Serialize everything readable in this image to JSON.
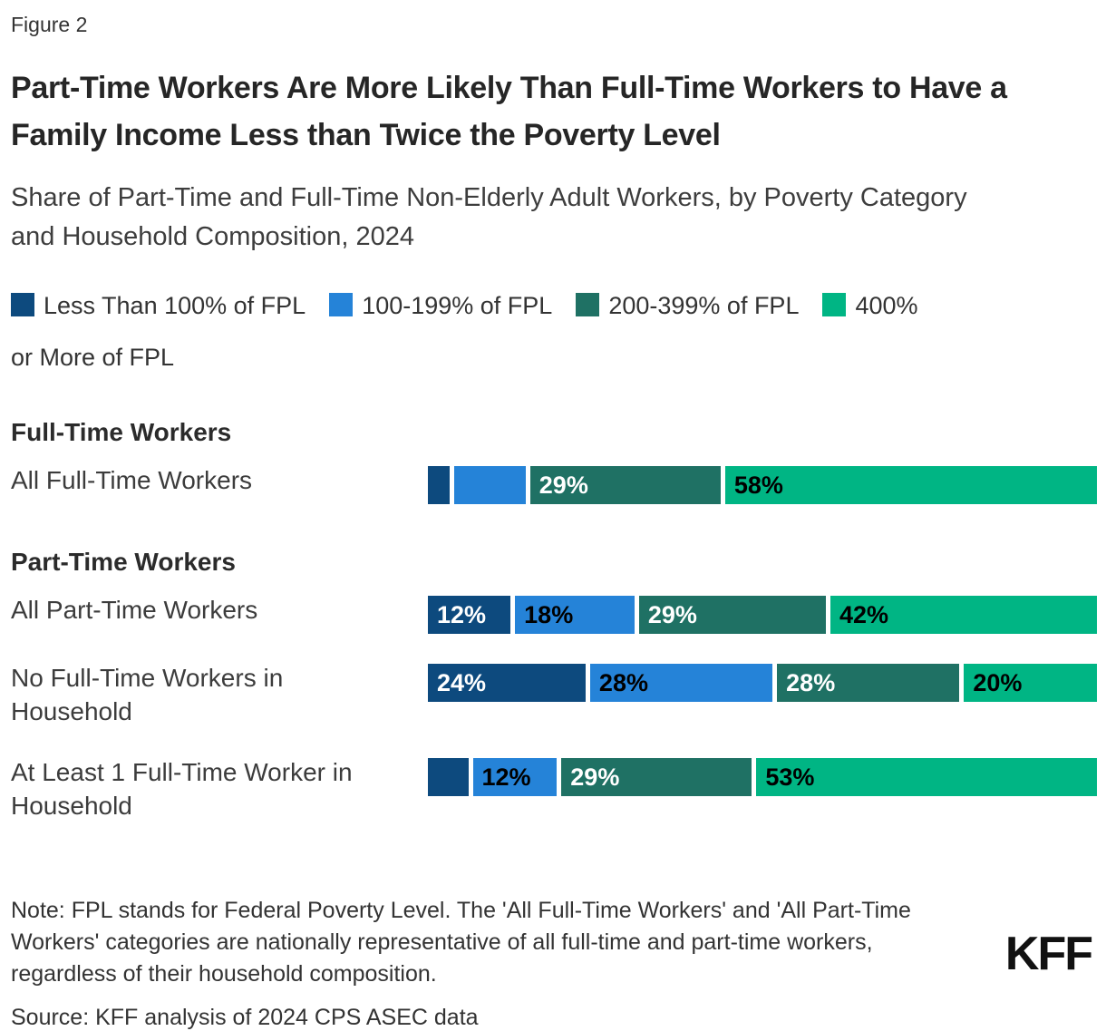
{
  "figure_label": "Figure 2",
  "title": "Part-Time Workers Are More Likely Than Full-Time Workers to Have a Family Income Less than Twice the Poverty Level",
  "subtitle": "Share of Part-Time and Full-Time Non-Elderly Adult Workers, by Poverty Category and Household Composition, 2024",
  "note": "Note: FPL stands for Federal Poverty Level. The 'All Full-Time Workers' and 'All Part-Time Workers' categories are nationally representative of all full-time and part-time workers, regardless of their household composition.",
  "source": "Source: KFF analysis of 2024 CPS ASEC data",
  "logo_text": "KFF",
  "colors": {
    "background": "#FFFFFF",
    "fpl_lt_100": "#0D4A7E",
    "fpl_100_199": "#2583D8",
    "fpl_200_399": "#1F7164",
    "fpl_400_plus": "#00B584",
    "title_text": "#262626",
    "body_text": "#333333"
  },
  "chart_data": {
    "type": "bar",
    "orientation": "horizontal-stacked",
    "value_unit": "%",
    "xlim": [
      0,
      100
    ],
    "legend_position": "top",
    "grid": false,
    "legend": [
      {
        "label": "Less Than 100% of FPL",
        "color": "#0D4A7E",
        "label_text_color": "#FFFFFF"
      },
      {
        "label": "100-199% of FPL",
        "color": "#2583D8",
        "label_text_color": "#000000"
      },
      {
        "label": "200-399% of FPL",
        "color": "#1F7164",
        "label_text_color": "#FFFFFF"
      },
      {
        "label": "400% or More of FPL",
        "color": "#00B584",
        "label_text_color": "#000000"
      }
    ],
    "sections": [
      {
        "heading": "Full-Time Workers",
        "rows": [
          {
            "category": "All Full-Time Workers",
            "values": [
              2,
              10,
              29,
              58
            ],
            "labels": [
              "",
              "",
              "29%",
              "58%"
            ]
          }
        ]
      },
      {
        "heading": "Part-Time Workers",
        "rows": [
          {
            "category": "All Part-Time Workers",
            "values": [
              12,
              18,
              29,
              42
            ],
            "labels": [
              "12%",
              "18%",
              "29%",
              "42%"
            ]
          },
          {
            "category": "No Full-Time Workers in Household",
            "values": [
              24,
              28,
              28,
              20
            ],
            "labels": [
              "24%",
              "28%",
              "28%",
              "20%"
            ]
          },
          {
            "category": "At Least 1 Full-Time Worker in Household",
            "values": [
              5,
              12,
              29,
              53
            ],
            "labels": [
              "",
              "12%",
              "29%",
              "53%"
            ]
          }
        ]
      }
    ]
  }
}
